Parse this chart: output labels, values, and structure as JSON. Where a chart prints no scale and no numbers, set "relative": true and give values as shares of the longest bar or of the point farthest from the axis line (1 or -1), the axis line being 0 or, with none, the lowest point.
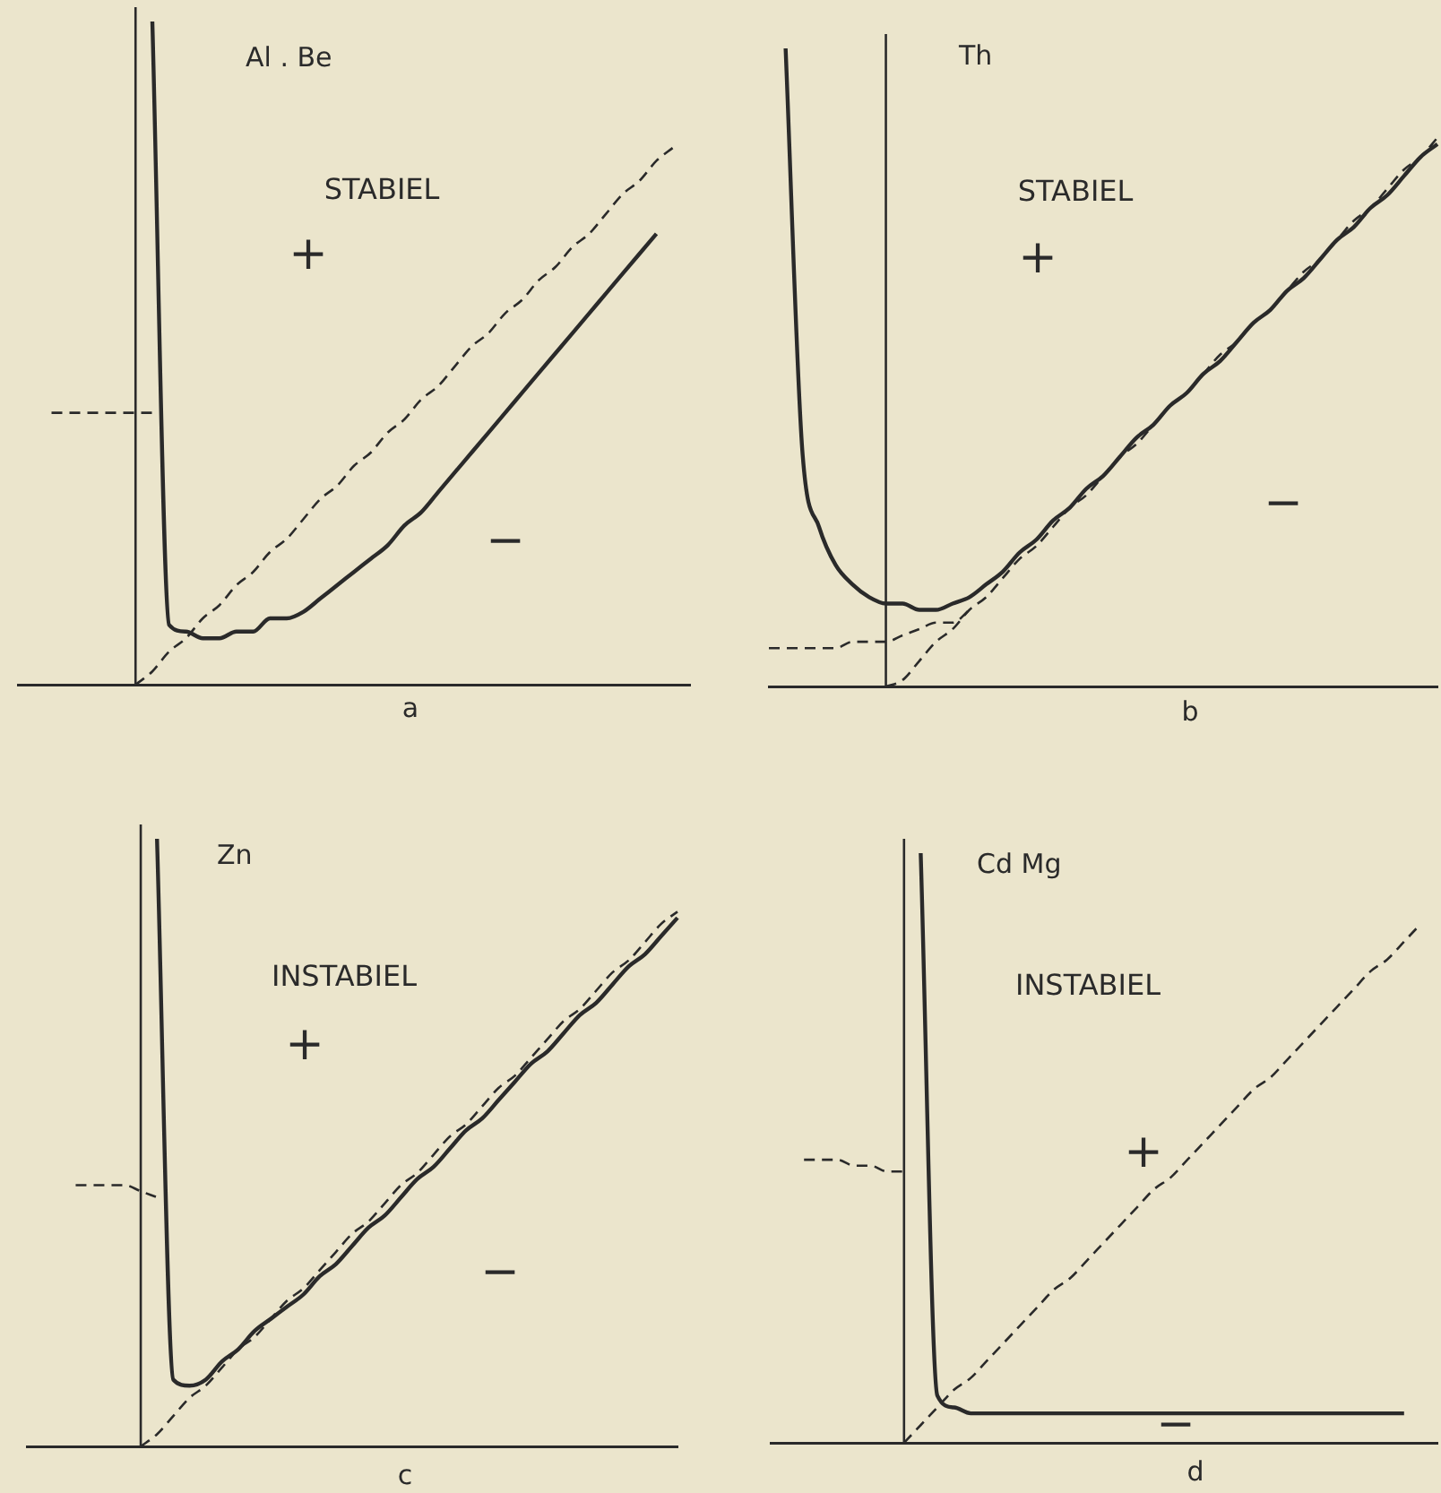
{
  "chart_data": [
    {
      "type": "line",
      "relative": true,
      "title": "Al . Be",
      "xlabel": "a",
      "tick_labels": false,
      "categories": [
        null,
        null,
        null,
        null,
        null,
        null,
        null,
        null,
        null,
        null,
        null,
        null,
        null,
        null,
        null,
        null,
        null,
        null,
        null,
        null,
        null,
        null,
        null,
        null,
        null,
        null,
        null,
        null,
        null,
        null,
        null,
        null,
        null,
        null,
        null,
        null,
        null,
        null,
        null,
        null,
        null
      ],
      "series": [
        {
          "color": "#2a2a2a",
          "line_style": "solid",
          "values": [
            null,
            null,
            null,
            null,
            null,
            null,
            null,
            null,
            1,
            0.09,
            0.08,
            0.07,
            0.07,
            0.08,
            0.08,
            0.1,
            0.1,
            0.11,
            0.13,
            0.15,
            0.17,
            0.19,
            0.21,
            0.24,
            0.26,
            0.29,
            0.32,
            0.35,
            0.38,
            0.41,
            0.44,
            0.47,
            0.5,
            0.53,
            0.56,
            0.59,
            0.62,
            0.65,
            0.68,
            null,
            null
          ]
        },
        {
          "color": "#2a2a2a",
          "line_style": "dashed",
          "values": [
            null,
            null,
            null,
            null,
            null,
            null,
            null,
            0,
            0.02,
            0.05,
            0.07,
            0.1,
            0.12,
            0.15,
            0.17,
            0.2,
            0.22,
            0.25,
            0.28,
            0.3,
            0.33,
            0.35,
            0.38,
            0.4,
            0.43,
            0.45,
            0.48,
            0.51,
            0.53,
            0.56,
            0.58,
            0.61,
            0.63,
            0.66,
            0.68,
            0.71,
            0.74,
            0.76,
            0.79,
            0.81,
            null
          ]
        },
        {
          "color": "#2a2a2a",
          "line_style": "dashed",
          "values": [
            null,
            null,
            0.41,
            0.41,
            0.41,
            0.41,
            0.41,
            0.41,
            0.41,
            null,
            null,
            null,
            null,
            null,
            null,
            null,
            null,
            null,
            null,
            null,
            null,
            null,
            null,
            null,
            null,
            null,
            null,
            null,
            null,
            null,
            null,
            null,
            null,
            null,
            null,
            null,
            null,
            null,
            null,
            null,
            null
          ]
        }
      ],
      "annotations": [
        "STABIEL",
        "+",
        "−"
      ]
    },
    {
      "type": "line",
      "relative": true,
      "title": "Th",
      "xlabel": "b",
      "tick_labels": false,
      "categories": [
        null,
        null,
        null,
        null,
        null,
        null,
        null,
        null,
        null,
        null,
        null,
        null,
        null,
        null,
        null,
        null,
        null,
        null,
        null,
        null,
        null,
        null,
        null,
        null,
        null,
        null,
        null,
        null,
        null,
        null,
        null,
        null,
        null,
        null,
        null,
        null,
        null,
        null,
        null,
        null,
        null
      ],
      "series": [
        {
          "color": "#2a2a2a",
          "line_style": "solid",
          "values": [
            null,
            1,
            0.37,
            0.25,
            0.19,
            0.16,
            0.14,
            0.13,
            0.13,
            0.12,
            0.12,
            0.13,
            0.14,
            0.16,
            0.18,
            0.21,
            0.23,
            0.26,
            0.28,
            0.31,
            0.33,
            0.36,
            0.39,
            0.41,
            0.44,
            0.46,
            0.49,
            0.51,
            0.54,
            0.57,
            0.59,
            0.62,
            0.64,
            0.67,
            0.7,
            0.72,
            0.75,
            0.77,
            0.8,
            0.83,
            0.85
          ]
        },
        {
          "color": "#2a2a2a",
          "line_style": "dashed",
          "values": [
            null,
            null,
            null,
            null,
            null,
            null,
            null,
            0,
            0.01,
            0.04,
            0.07,
            0.09,
            0.12,
            0.14,
            0.17,
            0.2,
            0.22,
            0.25,
            0.28,
            0.3,
            0.33,
            0.36,
            0.38,
            0.41,
            0.44,
            0.46,
            0.49,
            0.52,
            0.54,
            0.57,
            0.59,
            0.62,
            0.65,
            0.67,
            0.7,
            0.73,
            0.75,
            0.78,
            0.81,
            0.83,
            0.86
          ]
        },
        {
          "color": "#2a2a2a",
          "line_style": "dashed",
          "values": [
            0.06,
            0.06,
            0.06,
            0.06,
            0.06,
            0.07,
            0.07,
            0.07,
            0.08,
            0.09,
            0.1,
            0.1,
            0.12,
            null,
            null,
            null,
            null,
            null,
            null,
            null,
            null,
            null,
            null,
            null,
            null,
            null,
            null,
            null,
            null,
            null,
            null,
            null,
            null,
            null,
            null,
            null,
            null,
            null,
            null,
            null,
            null
          ]
        }
      ],
      "annotations": [
        "STABIEL",
        "+",
        "−"
      ]
    },
    {
      "type": "line",
      "relative": true,
      "title": "Zn",
      "xlabel": "c",
      "tick_labels": false,
      "categories": [
        null,
        null,
        null,
        null,
        null,
        null,
        null,
        null,
        null,
        null,
        null,
        null,
        null,
        null,
        null,
        null,
        null,
        null,
        null,
        null,
        null,
        null,
        null,
        null,
        null,
        null,
        null,
        null,
        null,
        null,
        null,
        null,
        null,
        null,
        null,
        null,
        null,
        null,
        null,
        null,
        null
      ],
      "series": [
        {
          "color": "#2a2a2a",
          "line_style": "solid",
          "values": [
            null,
            null,
            null,
            null,
            null,
            null,
            null,
            null,
            1,
            0.11,
            0.1,
            0.11,
            0.14,
            0.16,
            0.19,
            0.21,
            0.23,
            0.25,
            0.28,
            0.3,
            0.33,
            0.36,
            0.38,
            0.41,
            0.44,
            0.46,
            0.49,
            0.52,
            0.54,
            0.57,
            0.6,
            0.63,
            0.65,
            0.68,
            0.71,
            0.73,
            0.76,
            0.79,
            0.81,
            0.84,
            0.87
          ]
        },
        {
          "color": "#2a2a2a",
          "line_style": "dashed",
          "values": [
            null,
            null,
            null,
            null,
            null,
            null,
            null,
            0,
            0.02,
            0.05,
            0.08,
            0.1,
            0.13,
            0.16,
            0.18,
            0.21,
            0.24,
            0.26,
            0.29,
            0.32,
            0.35,
            0.37,
            0.4,
            0.43,
            0.45,
            0.48,
            0.51,
            0.53,
            0.56,
            0.59,
            0.61,
            0.64,
            0.67,
            0.7,
            0.72,
            0.75,
            0.78,
            0.8,
            0.83,
            0.86,
            0.88
          ]
        },
        {
          "color": "#2a2a2a",
          "line_style": "dashed",
          "values": [
            null,
            null,
            null,
            0.43,
            0.43,
            0.43,
            0.43,
            0.42,
            0.41,
            null,
            null,
            null,
            null,
            null,
            null,
            null,
            null,
            null,
            null,
            null,
            null,
            null,
            null,
            null,
            null,
            null,
            null,
            null,
            null,
            null,
            null,
            null,
            null,
            null,
            null,
            null,
            null,
            null,
            null,
            null,
            null
          ]
        }
      ],
      "annotations": [
        "INSTABIEL",
        "+",
        "−"
      ]
    },
    {
      "type": "line",
      "relative": true,
      "title": "Cd Mg",
      "xlabel": "d",
      "tick_labels": false,
      "categories": [
        null,
        null,
        null,
        null,
        null,
        null,
        null,
        null,
        null,
        null,
        null,
        null,
        null,
        null,
        null,
        null,
        null,
        null,
        null,
        null,
        null,
        null,
        null,
        null,
        null,
        null,
        null,
        null,
        null,
        null,
        null,
        null,
        null,
        null,
        null,
        null,
        null,
        null,
        null,
        null,
        null
      ],
      "series": [
        {
          "color": "#2a2a2a",
          "line_style": "solid",
          "values": [
            null,
            null,
            null,
            null,
            null,
            null,
            null,
            null,
            null,
            1,
            0.08,
            0.06,
            0.05,
            0.05,
            0.05,
            0.05,
            0.05,
            0.05,
            0.05,
            0.05,
            0.05,
            0.05,
            0.05,
            0.05,
            0.05,
            0.05,
            0.05,
            0.05,
            0.05,
            0.05,
            0.05,
            0.05,
            0.05,
            0.05,
            0.05,
            0.05,
            0.05,
            0.05,
            0.05,
            null,
            null
          ]
        },
        {
          "color": "#2a2a2a",
          "line_style": "dashed",
          "values": [
            null,
            null,
            null,
            null,
            null,
            null,
            null,
            null,
            0,
            0.03,
            0.06,
            0.09,
            0.11,
            0.14,
            0.17,
            0.2,
            0.23,
            0.26,
            0.28,
            0.31,
            0.34,
            0.37,
            0.4,
            0.43,
            0.45,
            0.48,
            0.51,
            0.54,
            0.57,
            0.6,
            0.62,
            0.65,
            0.68,
            0.71,
            0.74,
            0.77,
            0.8,
            0.82,
            0.85,
            0.88,
            null
          ]
        },
        {
          "color": "#2a2a2a",
          "line_style": "dashed",
          "values": [
            null,
            null,
            0.48,
            0.48,
            0.48,
            0.47,
            0.47,
            0.46,
            0.46,
            null,
            null,
            null,
            null,
            null,
            null,
            null,
            null,
            null,
            null,
            null,
            null,
            null,
            null,
            null,
            null,
            null,
            null,
            null,
            null,
            null,
            null,
            null,
            null,
            null,
            null,
            null,
            null,
            null,
            null,
            null,
            null
          ]
        }
      ],
      "annotations": [
        "INSTABIEL",
        "+",
        "−"
      ]
    }
  ]
}
